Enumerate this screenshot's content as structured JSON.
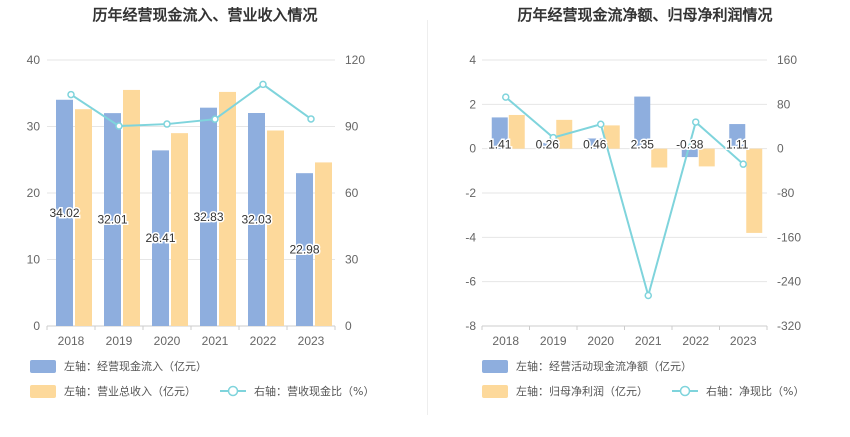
{
  "chart_data": [
    {
      "type": "bar+line",
      "title": "历年经营现金流入、营业收入情况",
      "categories": [
        "2018",
        "2019",
        "2020",
        "2021",
        "2022",
        "2023"
      ],
      "left_axis": {
        "min": 0,
        "max": 40,
        "ticks": [
          "0",
          "10",
          "20",
          "30",
          "40"
        ]
      },
      "right_axis": {
        "min": 0,
        "max": 120,
        "ticks": [
          "0",
          "30",
          "60",
          "90",
          "120"
        ]
      },
      "series": [
        {
          "name": "左轴：经营现金流入（亿元）",
          "type": "bar",
          "axis": "left",
          "color": "#8eaede",
          "values": [
            34.02,
            32.01,
            26.41,
            32.83,
            32.03,
            22.98
          ],
          "labels": [
            "34.02",
            "32.01",
            "26.41",
            "32.83",
            "32.03",
            "22.98"
          ]
        },
        {
          "name": "左轴：营业总收入（亿元）",
          "type": "bar",
          "axis": "left",
          "color": "#fdd99b",
          "values": [
            32.6,
            35.5,
            29.0,
            35.2,
            29.4,
            24.6
          ]
        },
        {
          "name": "右轴：营收现金比（%）",
          "type": "line",
          "axis": "right",
          "color": "#7fd4dc",
          "values": [
            104.4,
            90.2,
            91.1,
            93.3,
            109.0,
            93.4
          ]
        }
      ]
    },
    {
      "type": "bar+line",
      "title": "历年经营现金流净额、归母净利润情况",
      "categories": [
        "2018",
        "2019",
        "2020",
        "2021",
        "2022",
        "2023"
      ],
      "left_axis": {
        "min": -8,
        "max": 4,
        "ticks": [
          "-8",
          "-6",
          "-4",
          "-2",
          "0",
          "2",
          "4"
        ]
      },
      "right_axis": {
        "min": -320,
        "max": 160,
        "ticks": [
          "-320",
          "-240",
          "-160",
          "-80",
          "0",
          "80",
          "160"
        ]
      },
      "series": [
        {
          "name": "左轴：经营活动现金流净额（亿元）",
          "type": "bar",
          "axis": "left",
          "color": "#8eaede",
          "values": [
            1.41,
            0.26,
            0.46,
            2.35,
            -0.38,
            1.11
          ],
          "labels": [
            "1.41",
            "0.26",
            "0.46",
            "2.35",
            "-0.38",
            "1.11"
          ]
        },
        {
          "name": "左轴：归母净利润（亿元）",
          "type": "bar",
          "axis": "left",
          "color": "#fdd99b",
          "values": [
            1.52,
            1.3,
            1.05,
            -0.85,
            -0.8,
            -3.8
          ]
        },
        {
          "name": "右轴：净现比（%）",
          "type": "line",
          "axis": "right",
          "color": "#7fd4dc",
          "values": [
            93,
            20,
            44,
            -265,
            48,
            -28
          ]
        }
      ]
    }
  ]
}
